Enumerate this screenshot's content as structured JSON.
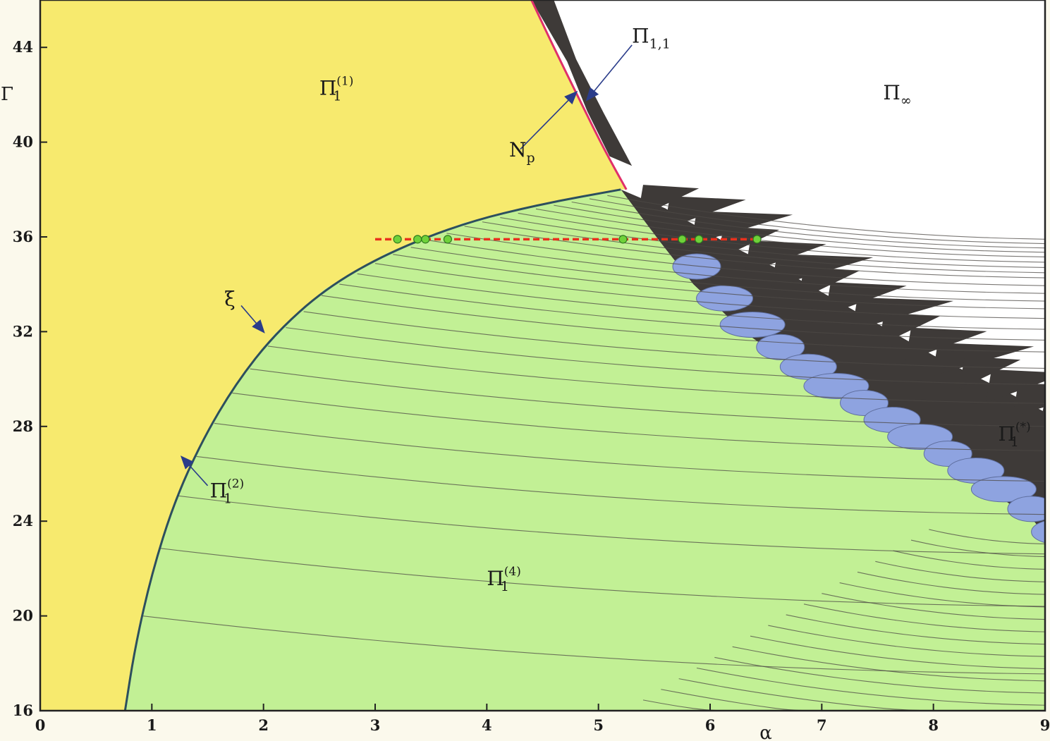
{
  "chart_data": {
    "type": "area",
    "xlabel": "α",
    "ylabel": "Γ",
    "xlim": [
      0,
      9
    ],
    "ylim": [
      16,
      46
    ],
    "xticks": [
      0,
      1,
      2,
      3,
      4,
      5,
      6,
      7,
      8,
      9
    ],
    "yticks": [
      16,
      20,
      24,
      28,
      32,
      36,
      40,
      44
    ],
    "grid": false,
    "legend": "none",
    "colors": {
      "yellow_region": "#f7ea6e",
      "green_region": "#c2f095",
      "white_region": "#ffffff",
      "dark_region": "#3e3a38",
      "blue_lobes": "#8ea3e0",
      "boundary_np": "#e0306a",
      "section_line": "#e8311d",
      "section_points": "#6fd13a",
      "arrow": "#2a3c8a"
    },
    "boundary_xi": {
      "name": "ξ",
      "x": [
        0.76,
        0.85,
        1.0,
        1.2,
        1.45,
        1.75,
        2.1,
        2.55,
        3.1,
        3.8,
        4.5,
        5.2
      ],
      "y": [
        16,
        18.7,
        21.8,
        24.8,
        27.4,
        29.8,
        31.9,
        33.8,
        35.3,
        36.6,
        37.4,
        38.0
      ]
    },
    "boundary_np": {
      "name": "Np",
      "x": [
        4.4,
        4.6,
        4.85,
        5.05,
        5.25
      ],
      "y": [
        46,
        44.0,
        41.6,
        39.7,
        38.0
      ]
    },
    "section": {
      "y": 35.9,
      "x_start": 3.0,
      "x_end": 6.45,
      "points": [
        3.2,
        3.38,
        3.45,
        3.65,
        5.22,
        5.75,
        5.9,
        6.42
      ]
    },
    "labels": [
      {
        "id": "pi1-1",
        "base": "Π",
        "sub": "1",
        "sup": "(1)",
        "x": 2.5,
        "y": 42.0
      },
      {
        "id": "pi11",
        "base": "Π",
        "sub": "1,1",
        "sup": "",
        "x": 5.3,
        "y": 44.2
      },
      {
        "id": "pi-inf",
        "base": "Π",
        "sub": "∞",
        "sup": "",
        "x": 7.55,
        "y": 41.8
      },
      {
        "id": "np",
        "base": "N",
        "sub": "p",
        "sup": "",
        "x": 4.2,
        "y": 39.4
      },
      {
        "id": "xi",
        "base": "ξ",
        "sub": "",
        "sup": "",
        "x": 1.65,
        "y": 33.1
      },
      {
        "id": "pi1-2",
        "base": "Π",
        "sub": "1",
        "sup": "(2)",
        "x": 1.52,
        "y": 25.0
      },
      {
        "id": "pi1-4",
        "base": "Π",
        "sub": "1",
        "sup": "(4)",
        "x": 4.0,
        "y": 21.3
      },
      {
        "id": "pi1-star",
        "base": "Π",
        "sub": "1",
        "sup": "(*)",
        "x": 8.58,
        "y": 27.4
      }
    ]
  }
}
